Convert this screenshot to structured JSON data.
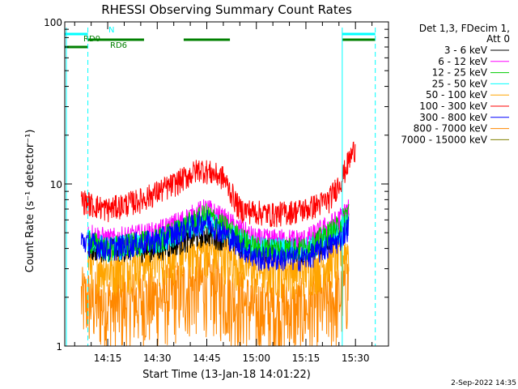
{
  "chart_data": {
    "type": "line",
    "title": "RHESSI Observing Summary Count Rates",
    "xlabel": "Start Time (13-Jan-18 14:01:22)",
    "ylabel": "Count Rate (s⁻¹ detector⁻¹)",
    "y_scale": "log",
    "ylim": [
      1,
      100
    ],
    "xlim": [
      "14:02",
      "15:40"
    ],
    "x_ticks": [
      "14:15",
      "14:30",
      "14:45",
      "15:00",
      "15:15",
      "15:30"
    ],
    "y_ticks": [
      "1",
      "10",
      "100"
    ],
    "grid": false,
    "legend_position": "right",
    "legend_header": [
      "Det 1,3, FDecim 1,",
      "Att 0"
    ],
    "date_stamp": "2-Sep-2022 14:35",
    "series": [
      {
        "name": "3 - 6 keV",
        "color": "#000000",
        "x": [
          "14:09",
          "14:15",
          "14:30",
          "14:45",
          "15:00",
          "15:15",
          "15:25",
          "15:28"
        ],
        "values": [
          4,
          4,
          4,
          5,
          4,
          4,
          5,
          6
        ]
      },
      {
        "name": "6 - 12 keV",
        "color": "#ff00ff",
        "x": [
          "14:09",
          "14:15",
          "14:30",
          "14:45",
          "15:00",
          "15:15",
          "15:25",
          "15:28"
        ],
        "values": [
          5,
          4.5,
          5,
          7,
          4.5,
          4.5,
          6,
          7
        ]
      },
      {
        "name": "12 - 25 keV",
        "color": "#00cc00",
        "x": [
          "14:09",
          "14:15",
          "14:30",
          "14:45",
          "15:00",
          "15:15",
          "15:25",
          "15:28"
        ],
        "values": [
          4.5,
          4,
          4.5,
          6.5,
          4,
          4,
          5.5,
          7
        ]
      },
      {
        "name": "25 - 50 keV",
        "color": "#00ffff",
        "x": [
          "14:09",
          "14:15",
          "14:30",
          "14:45",
          "15:00",
          "15:15",
          "15:25",
          "15:28"
        ],
        "values": [
          4.5,
          4,
          4.5,
          6,
          4,
          4,
          5,
          6
        ]
      },
      {
        "name": "50 - 100 keV",
        "color": "#ffa500",
        "x": [
          "14:09",
          "14:15",
          "14:30",
          "14:45",
          "15:00",
          "15:15",
          "15:25",
          "15:28"
        ],
        "values": [
          3.5,
          3,
          3.5,
          4,
          3,
          3,
          3.5,
          4
        ]
      },
      {
        "name": "100 - 300 keV",
        "color": "#ff0000",
        "x": [
          "14:07",
          "14:10",
          "14:15",
          "14:25",
          "14:35",
          "14:43",
          "14:50",
          "14:55",
          "15:05",
          "15:15",
          "15:22",
          "15:26",
          "15:28",
          "15:30"
        ],
        "values": [
          8,
          7.5,
          7,
          8,
          10,
          12.5,
          11,
          7,
          6.5,
          7,
          8,
          11,
          14,
          17
        ]
      },
      {
        "name": "300 - 800 keV",
        "color": "#0000ff",
        "x": [
          "14:07",
          "14:15",
          "14:30",
          "14:45",
          "15:00",
          "15:15",
          "15:25",
          "15:28"
        ],
        "values": [
          4.5,
          4,
          4.5,
          6,
          3.5,
          3.5,
          4.5,
          5.5
        ]
      },
      {
        "name": "800 - 7000 keV",
        "color": "#ff8800",
        "x": [
          "14:07",
          "14:15",
          "14:30",
          "14:45",
          "15:00",
          "15:15",
          "15:25",
          "15:28"
        ],
        "values": [
          2,
          1.8,
          2,
          2.5,
          1.7,
          1.7,
          2,
          2.5
        ]
      },
      {
        "name": "7000 - 15000 keV",
        "color": "#808000",
        "x": [],
        "values": []
      }
    ],
    "flags": [
      {
        "label": "N",
        "color": "#00ffff",
        "segments": [
          [
            "14:02",
            "14:09"
          ],
          [
            "15:26",
            "15:36"
          ]
        ]
      },
      {
        "label": "RD0",
        "color": "#008000",
        "segments": [
          [
            "14:02",
            "14:09"
          ]
        ]
      },
      {
        "label": "RD6",
        "color": "#008000",
        "segments": [
          [
            "14:09",
            "14:26"
          ],
          [
            "14:38",
            "14:52"
          ],
          [
            "15:26",
            "15:36"
          ]
        ]
      }
    ],
    "vertical_markers": [
      {
        "x": "14:09",
        "style": "dashed",
        "color": "#00ffff"
      },
      {
        "x": "15:26",
        "style": "solid",
        "color": "#00ffff"
      },
      {
        "x": "15:36",
        "style": "dashed",
        "color": "#00ffff"
      }
    ]
  }
}
